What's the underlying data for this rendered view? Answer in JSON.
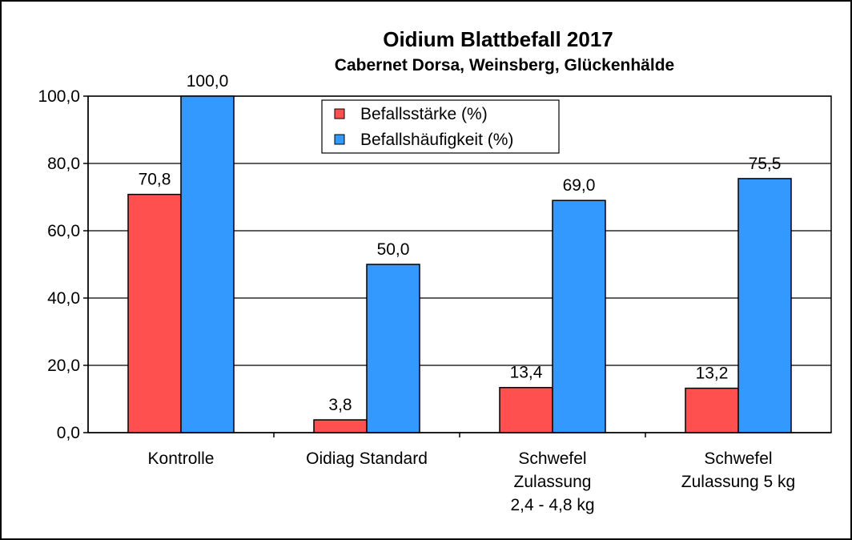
{
  "chart_data": {
    "type": "bar",
    "title": "Oidium Blattbefall 2017",
    "subtitle": "Cabernet Dorsa, Weinsberg, Glückenhälde",
    "categories": [
      [
        "Kontrolle"
      ],
      [
        "Oidiag Standard"
      ],
      [
        "Schwefel",
        "Zulassung",
        "2,4 - 4,8 kg"
      ],
      [
        "Schwefel",
        "Zulassung 5 kg"
      ]
    ],
    "series": [
      {
        "name": "Befallsstärke (%)",
        "color": "#ff5050",
        "values": [
          70.8,
          3.8,
          13.4,
          13.2
        ],
        "labels": [
          "70,8",
          "3,8",
          "13,4",
          "13,2"
        ]
      },
      {
        "name": "Befallshäufigkeit (%)",
        "color": "#3399ff",
        "values": [
          100.0,
          50.0,
          69.0,
          75.5
        ],
        "labels": [
          "100,0",
          "50,0",
          "69,0",
          "75,5"
        ]
      }
    ],
    "ylim": [
      0,
      100
    ],
    "yticks": [
      0,
      20,
      40,
      60,
      80,
      100
    ],
    "ytick_labels": [
      "0,0",
      "20,0",
      "40,0",
      "60,0",
      "80,0",
      "100,0"
    ],
    "grid": true,
    "legend_position": "top-center"
  }
}
